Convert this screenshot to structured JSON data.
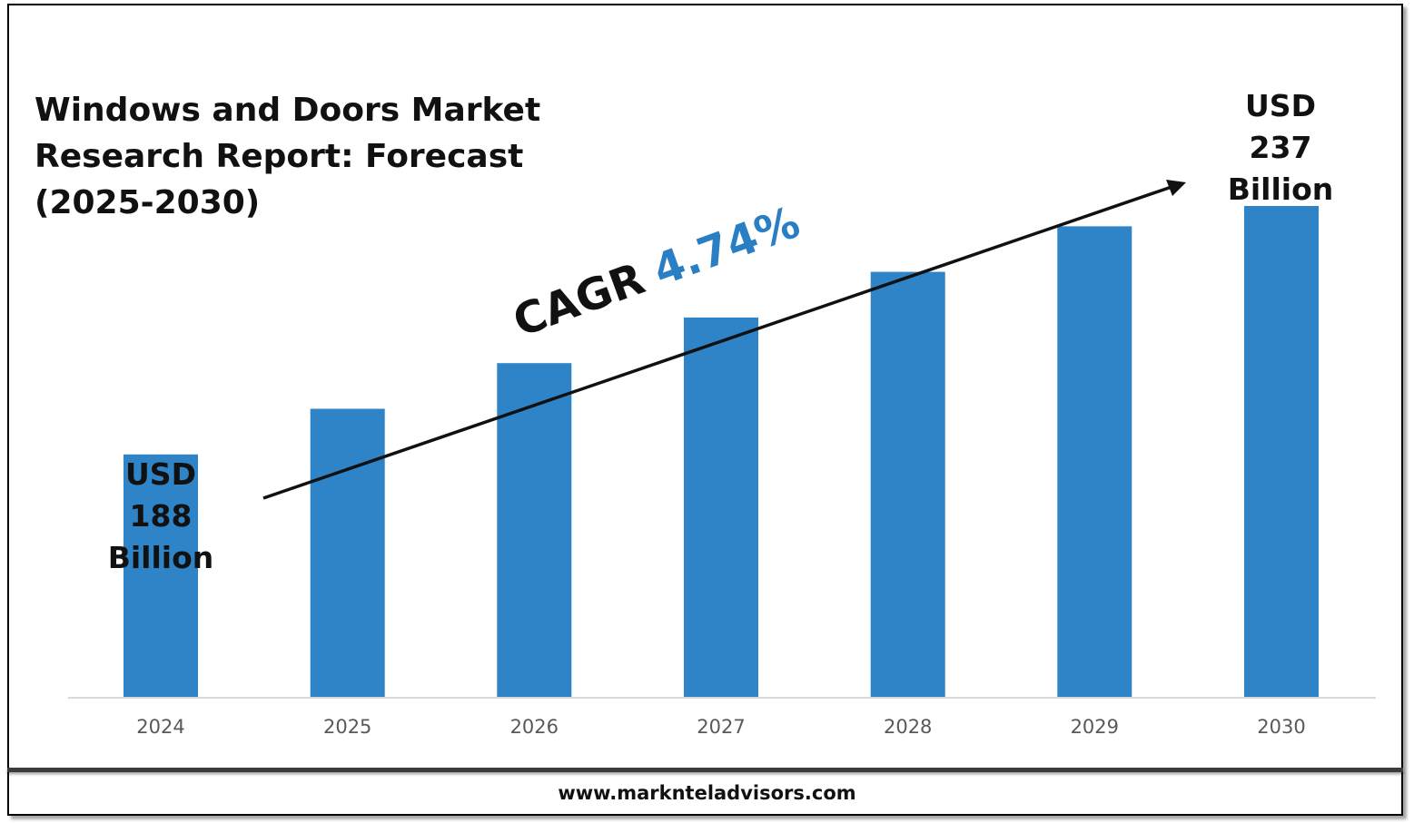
{
  "title": "Windows and Doors Market Research Report: Forecast (2025-2030)",
  "start_label": {
    "line1": "USD",
    "line2": "188",
    "line3": "Billion"
  },
  "end_label": {
    "line1": "USD",
    "line2": "237",
    "line3": "Billion"
  },
  "cagr": {
    "prefix": "CAGR",
    "value": "4.74%"
  },
  "footer": {
    "url": "www.marknteladvisors.com"
  },
  "colors": {
    "bar": "#2e84c6",
    "cagr_value": "#2a7fc4",
    "axis": "#d9d9d9",
    "tick_label": "#595959"
  },
  "chart_data": {
    "type": "bar",
    "categories": [
      "2024",
      "2025",
      "2026",
      "2027",
      "2028",
      "2029",
      "2030"
    ],
    "values": [
      188,
      197,
      206,
      215,
      224,
      233,
      237
    ],
    "ylim": [
      140,
      240
    ],
    "grid": false,
    "legend": "none",
    "annotations": [
      "USD 188 Billion",
      "USD 237 Billion",
      "CAGR 4.74%"
    ]
  }
}
